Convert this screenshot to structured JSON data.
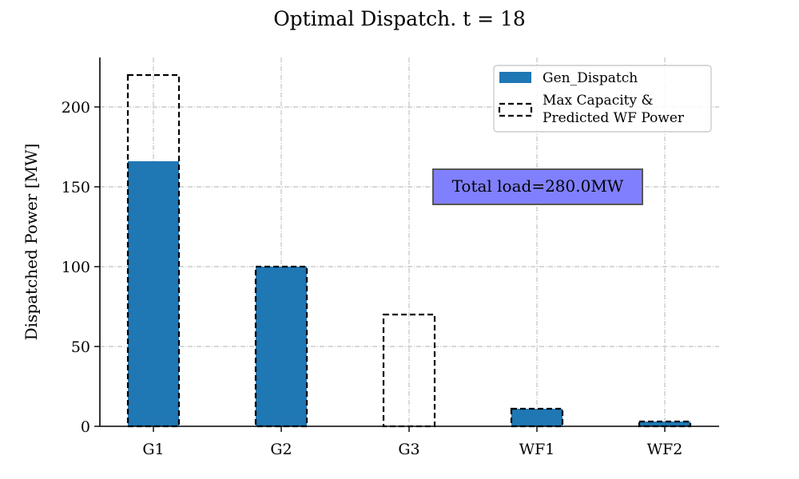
{
  "chart_data": {
    "type": "bar",
    "title": "Optimal Dispatch. t = 18",
    "xlabel": "",
    "ylabel": "Dispatched Power [MW]",
    "categories": [
      "G1",
      "G2",
      "G3",
      "WF1",
      "WF2"
    ],
    "ylim": [
      0,
      231
    ],
    "yticks": [
      0,
      50,
      100,
      150,
      200
    ],
    "grid": true,
    "series": [
      {
        "name": "Gen_Dispatch",
        "kind": "filled",
        "color": "#1f77b4",
        "values": [
          166,
          100,
          0,
          11,
          3
        ]
      },
      {
        "name": "Max Capacity & Predicted WF Power",
        "kind": "dashed-outline",
        "color": "#000000",
        "values": [
          220,
          100,
          70,
          11,
          3
        ]
      }
    ],
    "legend": {
      "placement": "top-right",
      "entries": [
        {
          "lines": [
            "Gen_Dispatch"
          ],
          "style": "filled",
          "color": "#1f77b4"
        },
        {
          "lines": [
            "Max Capacity &",
            "Predicted WF Power"
          ],
          "style": "dashed-outline",
          "color": "#000000"
        }
      ]
    },
    "annotation": {
      "text": "Total load=280.0MW",
      "background": "#8080ff"
    }
  }
}
